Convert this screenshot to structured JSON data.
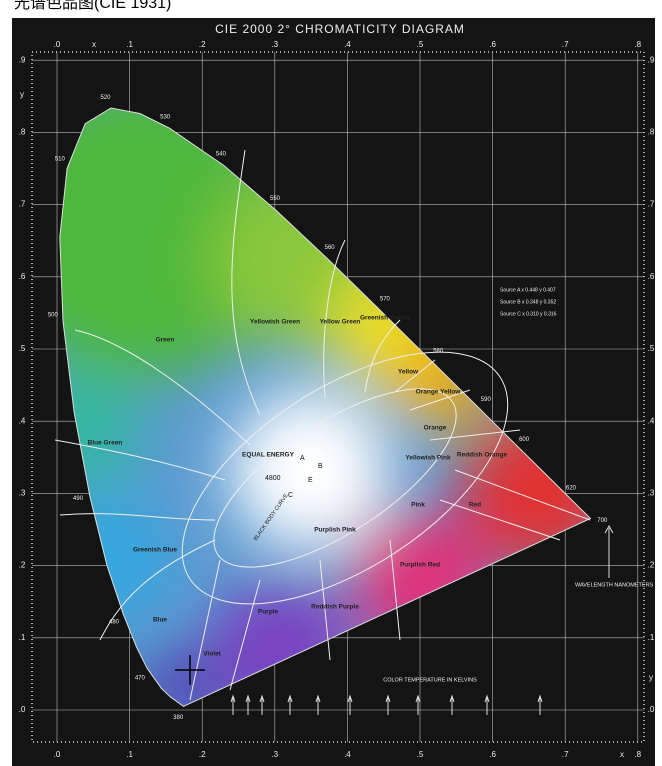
{
  "header": {
    "caption": "光谱色品图(CIE 1931)",
    "title": "CIE 2000 2° CHROMATICITY DIAGRAM"
  },
  "axes": {
    "x_name": "x",
    "y_name": "y",
    "x_ticks": [
      ".0",
      ".1",
      ".2",
      ".3",
      ".4",
      ".5",
      ".6",
      ".7",
      ".8"
    ],
    "y_ticks": [
      ".0",
      ".1",
      ".2",
      ".3",
      ".4",
      ".5",
      ".6",
      ".7",
      ".8",
      ".9"
    ]
  },
  "regions": [
    "Green",
    "Yellowish Green",
    "Yellow Green",
    "Greenish Yellow",
    "Yellow",
    "Orange Yellow",
    "Orange",
    "Reddish Orange",
    "Red",
    "Pink",
    "Yellowish Pink",
    "Purplish Pink",
    "Purplish Red",
    "Reddish Purple",
    "Purple",
    "Violet",
    "Blue",
    "Greenish Blue",
    "Blue Green",
    "EQUAL ENERGY"
  ],
  "points": [
    "A",
    "B",
    "C",
    "4800",
    "E"
  ],
  "wavelengths": [
    "520",
    "530",
    "540",
    "550",
    "560",
    "570",
    "580",
    "590",
    "600",
    "620",
    "700",
    "510",
    "500",
    "490",
    "480",
    "470",
    "380"
  ],
  "notes": {
    "black_body": "BLACK BODY CURVE",
    "color_temperature": "COLOR TEMPERATURE IN KELVINS",
    "wavelength": "WAVELENGTH NANOMETERS"
  },
  "sources": [
    "Source A x 0.448 y 0.407",
    "Source B x 0.348 y 0.352",
    "Source C x 0.310 y 0.316"
  ]
}
